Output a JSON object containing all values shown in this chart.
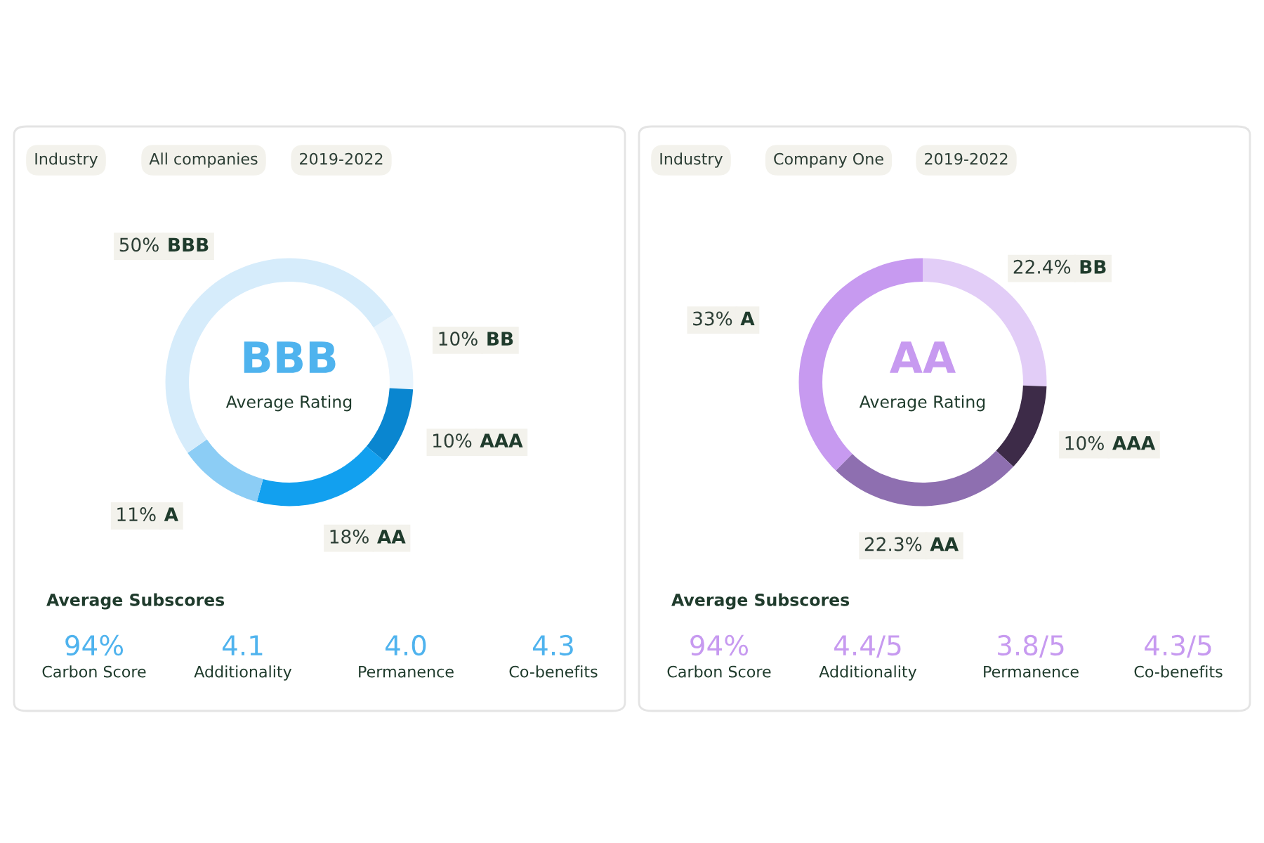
{
  "chart_data": [
    {
      "type": "donut",
      "categories": [
        "BB",
        "AAA",
        "AA",
        "A",
        "BBB"
      ],
      "values": [
        10,
        10,
        18,
        11,
        50
      ],
      "value_labels": [
        "10%",
        "10%",
        "18%",
        "11%",
        "50%"
      ],
      "colors": [
        "#e8f4fd",
        "#0a86d0",
        "#12a0ef",
        "#8ccdf5",
        "#d6ecfb"
      ],
      "legend": false,
      "annotations": [
        "Industry",
        "All companies",
        "2019-2022",
        "BBB",
        "Average Rating",
        "Average Subscores",
        "94%",
        "Carbon Score",
        "4.1",
        "Additionality",
        "4.0",
        "Permanence",
        "4.3",
        "Co-benefits"
      ]
    },
    {
      "type": "donut",
      "categories": [
        "BB",
        "AAA",
        "AA",
        "A"
      ],
      "values": [
        22.4,
        10,
        22.3,
        33
      ],
      "value_labels": [
        "22.4%",
        "10%",
        "22.3%",
        "33%"
      ],
      "colors": [
        "#e2cdf7",
        "#3d2b48",
        "#8e6fb0",
        "#c79af0"
      ],
      "legend": false,
      "annotations": [
        "Industry",
        "Company One",
        "2019-2022",
        "AA",
        "Average Rating",
        "Average Subscores",
        "94%",
        "Carbon Score",
        "4.4/5",
        "Additionality",
        "3.8/5",
        "Permanence",
        "4.3/5",
        "Co-benefits"
      ]
    }
  ]
}
